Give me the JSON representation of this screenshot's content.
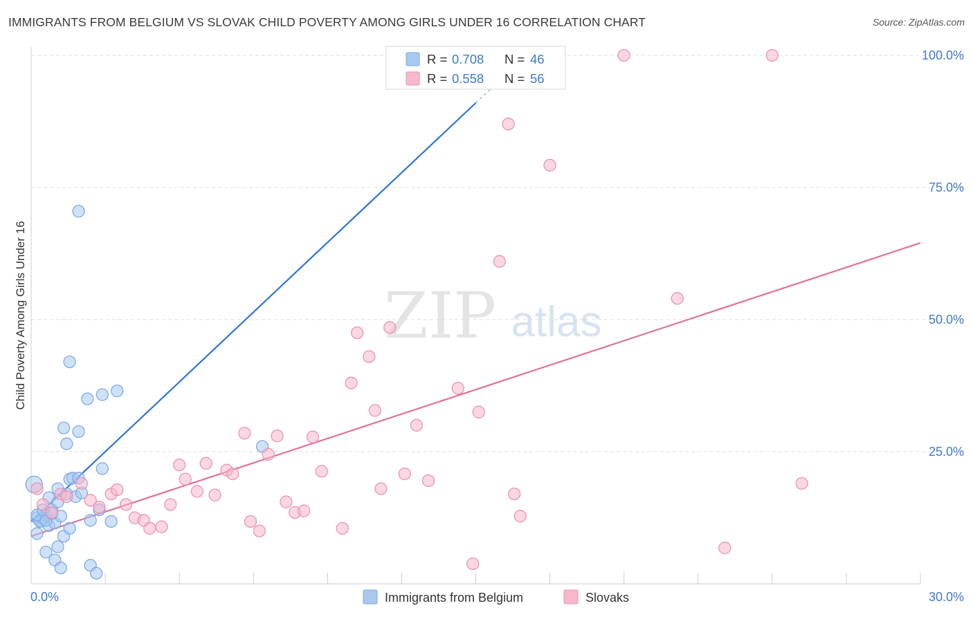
{
  "title": "IMMIGRANTS FROM BELGIUM VS SLOVAK CHILD POVERTY AMONG GIRLS UNDER 16 CORRELATION CHART",
  "source": "Source: ZipAtlas.com",
  "watermark": {
    "zip": "ZIP",
    "atlas": "atlas"
  },
  "colors": {
    "blue": "#2d74d4",
    "blue_fill": "#a8c8f0",
    "pink": "#e07098",
    "pink_fill": "#f6b7cb",
    "axis_text": "#3f7acb",
    "grid": "#dddddd"
  },
  "chart_data": {
    "type": "scatter",
    "xlabel": "",
    "ylabel": "Child Poverty Among Girls Under 16",
    "xlim": [
      0,
      30
    ],
    "ylim": [
      0,
      100
    ],
    "x_ticks": [
      {
        "v": 0,
        "label": "0.0%"
      },
      {
        "v": 30,
        "label": "30.0%"
      }
    ],
    "y_ticks": [
      {
        "v": 25,
        "label": "25.0%"
      },
      {
        "v": 50,
        "label": "50.0%"
      },
      {
        "v": 75,
        "label": "75.0%"
      },
      {
        "v": 100,
        "label": "100.0%"
      }
    ],
    "grid": true,
    "legend_position": "top-center",
    "series": [
      {
        "name": "Immigrants from Belgium",
        "r": "0.708",
        "n": "46",
        "color": "#2d74d4",
        "fill": "#a8c8f0",
        "trend": {
          "x0": 0.0,
          "y0": 11.8,
          "x1": 15.0,
          "y1": 91.0,
          "dash_to_x": 16.2,
          "dash_to_y": 97.3
        },
        "points": [
          [
            0.1,
            18.8
          ],
          [
            0.2,
            12.5
          ],
          [
            0.4,
            12.5
          ],
          [
            0.5,
            13.0
          ],
          [
            0.3,
            12.0
          ],
          [
            0.6,
            11.0
          ],
          [
            0.7,
            14.0
          ],
          [
            0.9,
            18.0
          ],
          [
            0.2,
            9.5
          ],
          [
            0.5,
            6.0
          ],
          [
            0.8,
            4.5
          ],
          [
            1.0,
            3.0
          ],
          [
            0.9,
            7.0
          ],
          [
            1.1,
            9.0
          ],
          [
            1.3,
            10.5
          ],
          [
            0.8,
            11.5
          ],
          [
            1.2,
            17.0
          ],
          [
            1.3,
            19.8
          ],
          [
            1.4,
            20.0
          ],
          [
            1.5,
            16.5
          ],
          [
            1.6,
            70.5
          ],
          [
            1.3,
            42.0
          ],
          [
            1.9,
            35.0
          ],
          [
            2.4,
            35.8
          ],
          [
            2.9,
            36.5
          ],
          [
            1.1,
            29.5
          ],
          [
            1.2,
            26.5
          ],
          [
            1.6,
            28.8
          ],
          [
            2.4,
            21.8
          ],
          [
            2.0,
            3.5
          ],
          [
            2.2,
            2.0
          ],
          [
            2.0,
            12.0
          ],
          [
            2.7,
            11.8
          ],
          [
            2.3,
            14.0
          ],
          [
            0.4,
            12.3
          ],
          [
            0.6,
            16.3
          ],
          [
            0.9,
            15.5
          ],
          [
            1.0,
            12.8
          ],
          [
            7.8,
            26.0
          ],
          [
            0.3,
            11.8
          ],
          [
            0.2,
            13.0
          ],
          [
            0.5,
            12.0
          ],
          [
            0.7,
            13.3
          ],
          [
            0.4,
            14.0
          ],
          [
            1.7,
            17.2
          ],
          [
            1.6,
            20.0
          ]
        ]
      },
      {
        "name": "Slovaks",
        "r": "0.558",
        "n": "56",
        "color": "#e07098",
        "fill": "#f6b7cb",
        "trend": {
          "x0": 0.0,
          "y0": 9.0,
          "x1": 30.0,
          "y1": 64.5
        },
        "points": [
          [
            0.2,
            18.0
          ],
          [
            0.4,
            15.0
          ],
          [
            0.7,
            13.5
          ],
          [
            1.0,
            17.0
          ],
          [
            1.2,
            16.5
          ],
          [
            1.7,
            19.0
          ],
          [
            2.0,
            15.8
          ],
          [
            2.3,
            14.5
          ],
          [
            2.7,
            17.0
          ],
          [
            2.9,
            17.8
          ],
          [
            3.2,
            15.0
          ],
          [
            3.5,
            12.5
          ],
          [
            3.8,
            12.0
          ],
          [
            4.0,
            10.5
          ],
          [
            4.4,
            10.8
          ],
          [
            4.7,
            15.0
          ],
          [
            5.0,
            22.5
          ],
          [
            5.2,
            19.8
          ],
          [
            5.6,
            17.5
          ],
          [
            5.9,
            22.8
          ],
          [
            6.2,
            16.8
          ],
          [
            6.6,
            21.5
          ],
          [
            6.8,
            20.8
          ],
          [
            7.2,
            28.5
          ],
          [
            7.4,
            11.8
          ],
          [
            7.7,
            10.0
          ],
          [
            8.0,
            24.5
          ],
          [
            8.3,
            28.0
          ],
          [
            8.6,
            15.5
          ],
          [
            8.9,
            13.5
          ],
          [
            9.2,
            13.8
          ],
          [
            9.5,
            27.8
          ],
          [
            9.8,
            21.3
          ],
          [
            10.5,
            10.5
          ],
          [
            10.8,
            38.0
          ],
          [
            11.0,
            47.5
          ],
          [
            11.4,
            43.0
          ],
          [
            11.6,
            32.8
          ],
          [
            11.8,
            18.0
          ],
          [
            12.1,
            48.5
          ],
          [
            12.6,
            20.8
          ],
          [
            13.0,
            30.0
          ],
          [
            13.4,
            19.5
          ],
          [
            14.4,
            37.0
          ],
          [
            14.9,
            3.8
          ],
          [
            15.1,
            32.5
          ],
          [
            15.8,
            61.0
          ],
          [
            16.1,
            87.0
          ],
          [
            16.3,
            17.0
          ],
          [
            16.5,
            12.8
          ],
          [
            17.5,
            79.2
          ],
          [
            20.0,
            100.0
          ],
          [
            21.8,
            54.0
          ],
          [
            23.4,
            6.8
          ],
          [
            25.0,
            100.0
          ],
          [
            26.0,
            19.0
          ]
        ]
      }
    ]
  },
  "legend": {
    "r_label": "R =",
    "n_label": "N =",
    "items": [
      {
        "r": "0.708",
        "n": "46"
      },
      {
        "r": "0.558",
        "n": "56"
      }
    ]
  },
  "bottom_legend": [
    {
      "label": "Immigrants from Belgium"
    },
    {
      "label": "Slovaks"
    }
  ]
}
